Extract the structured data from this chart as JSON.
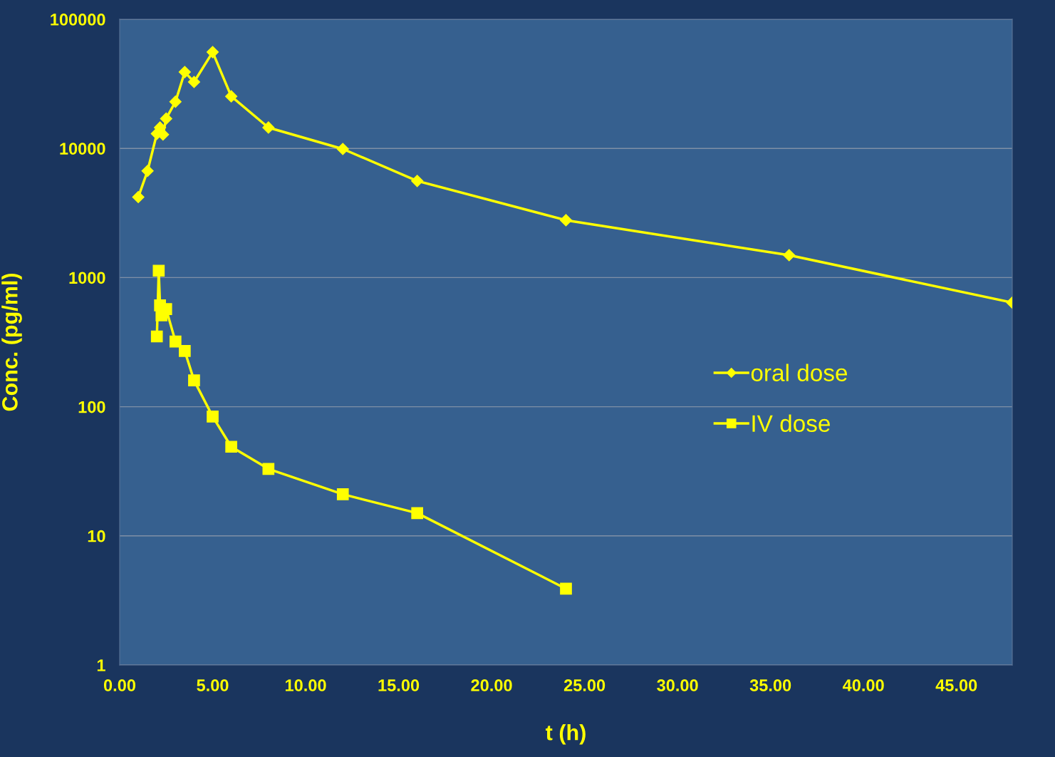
{
  "chart_data": {
    "type": "line",
    "xlabel": "t (h)",
    "ylabel": "Conc. (pg/ml)",
    "log": "y",
    "grid": "y",
    "legend": "right",
    "line_style": "solid",
    "xlim": [
      0,
      48
    ],
    "ylim": [
      1,
      100000
    ],
    "xticks": [
      {
        "value": 0,
        "label": "0.00"
      },
      {
        "value": 5,
        "label": "5.00"
      },
      {
        "value": 10,
        "label": "10.00"
      },
      {
        "value": 15,
        "label": "15.00"
      },
      {
        "value": 20,
        "label": "20.00"
      },
      {
        "value": 25,
        "label": "25.00"
      },
      {
        "value": 30,
        "label": "30.00"
      },
      {
        "value": 35,
        "label": "35.00"
      },
      {
        "value": 40,
        "label": "40.00"
      },
      {
        "value": 45,
        "label": "45.00"
      }
    ],
    "yticks": [
      1,
      10,
      100,
      1000,
      10000,
      100000
    ],
    "series": [
      {
        "name": "oral dose",
        "color": "#ffff00",
        "marker": "diamond",
        "x": [
          1,
          1.5,
          2,
          2.17,
          2.33,
          2.5,
          3,
          3.5,
          4,
          5,
          6,
          8,
          12,
          16,
          24,
          36,
          48
        ],
        "values": [
          4200,
          6700,
          13000,
          14500,
          12800,
          17000,
          23000,
          39000,
          32700,
          55700,
          25300,
          14500,
          9900,
          5600,
          2780,
          1490,
          640
        ]
      },
      {
        "name": "IV dose",
        "color": "#ffff00",
        "marker": "square",
        "x": [
          2,
          2.1,
          2.17,
          2.25,
          2.5,
          3,
          3.5,
          4,
          5,
          6,
          8,
          12,
          16,
          24
        ],
        "values": [
          350,
          1130,
          610,
          510,
          570,
          320,
          270,
          160,
          84,
          49,
          33,
          21,
          15,
          3.9
        ]
      }
    ]
  }
}
